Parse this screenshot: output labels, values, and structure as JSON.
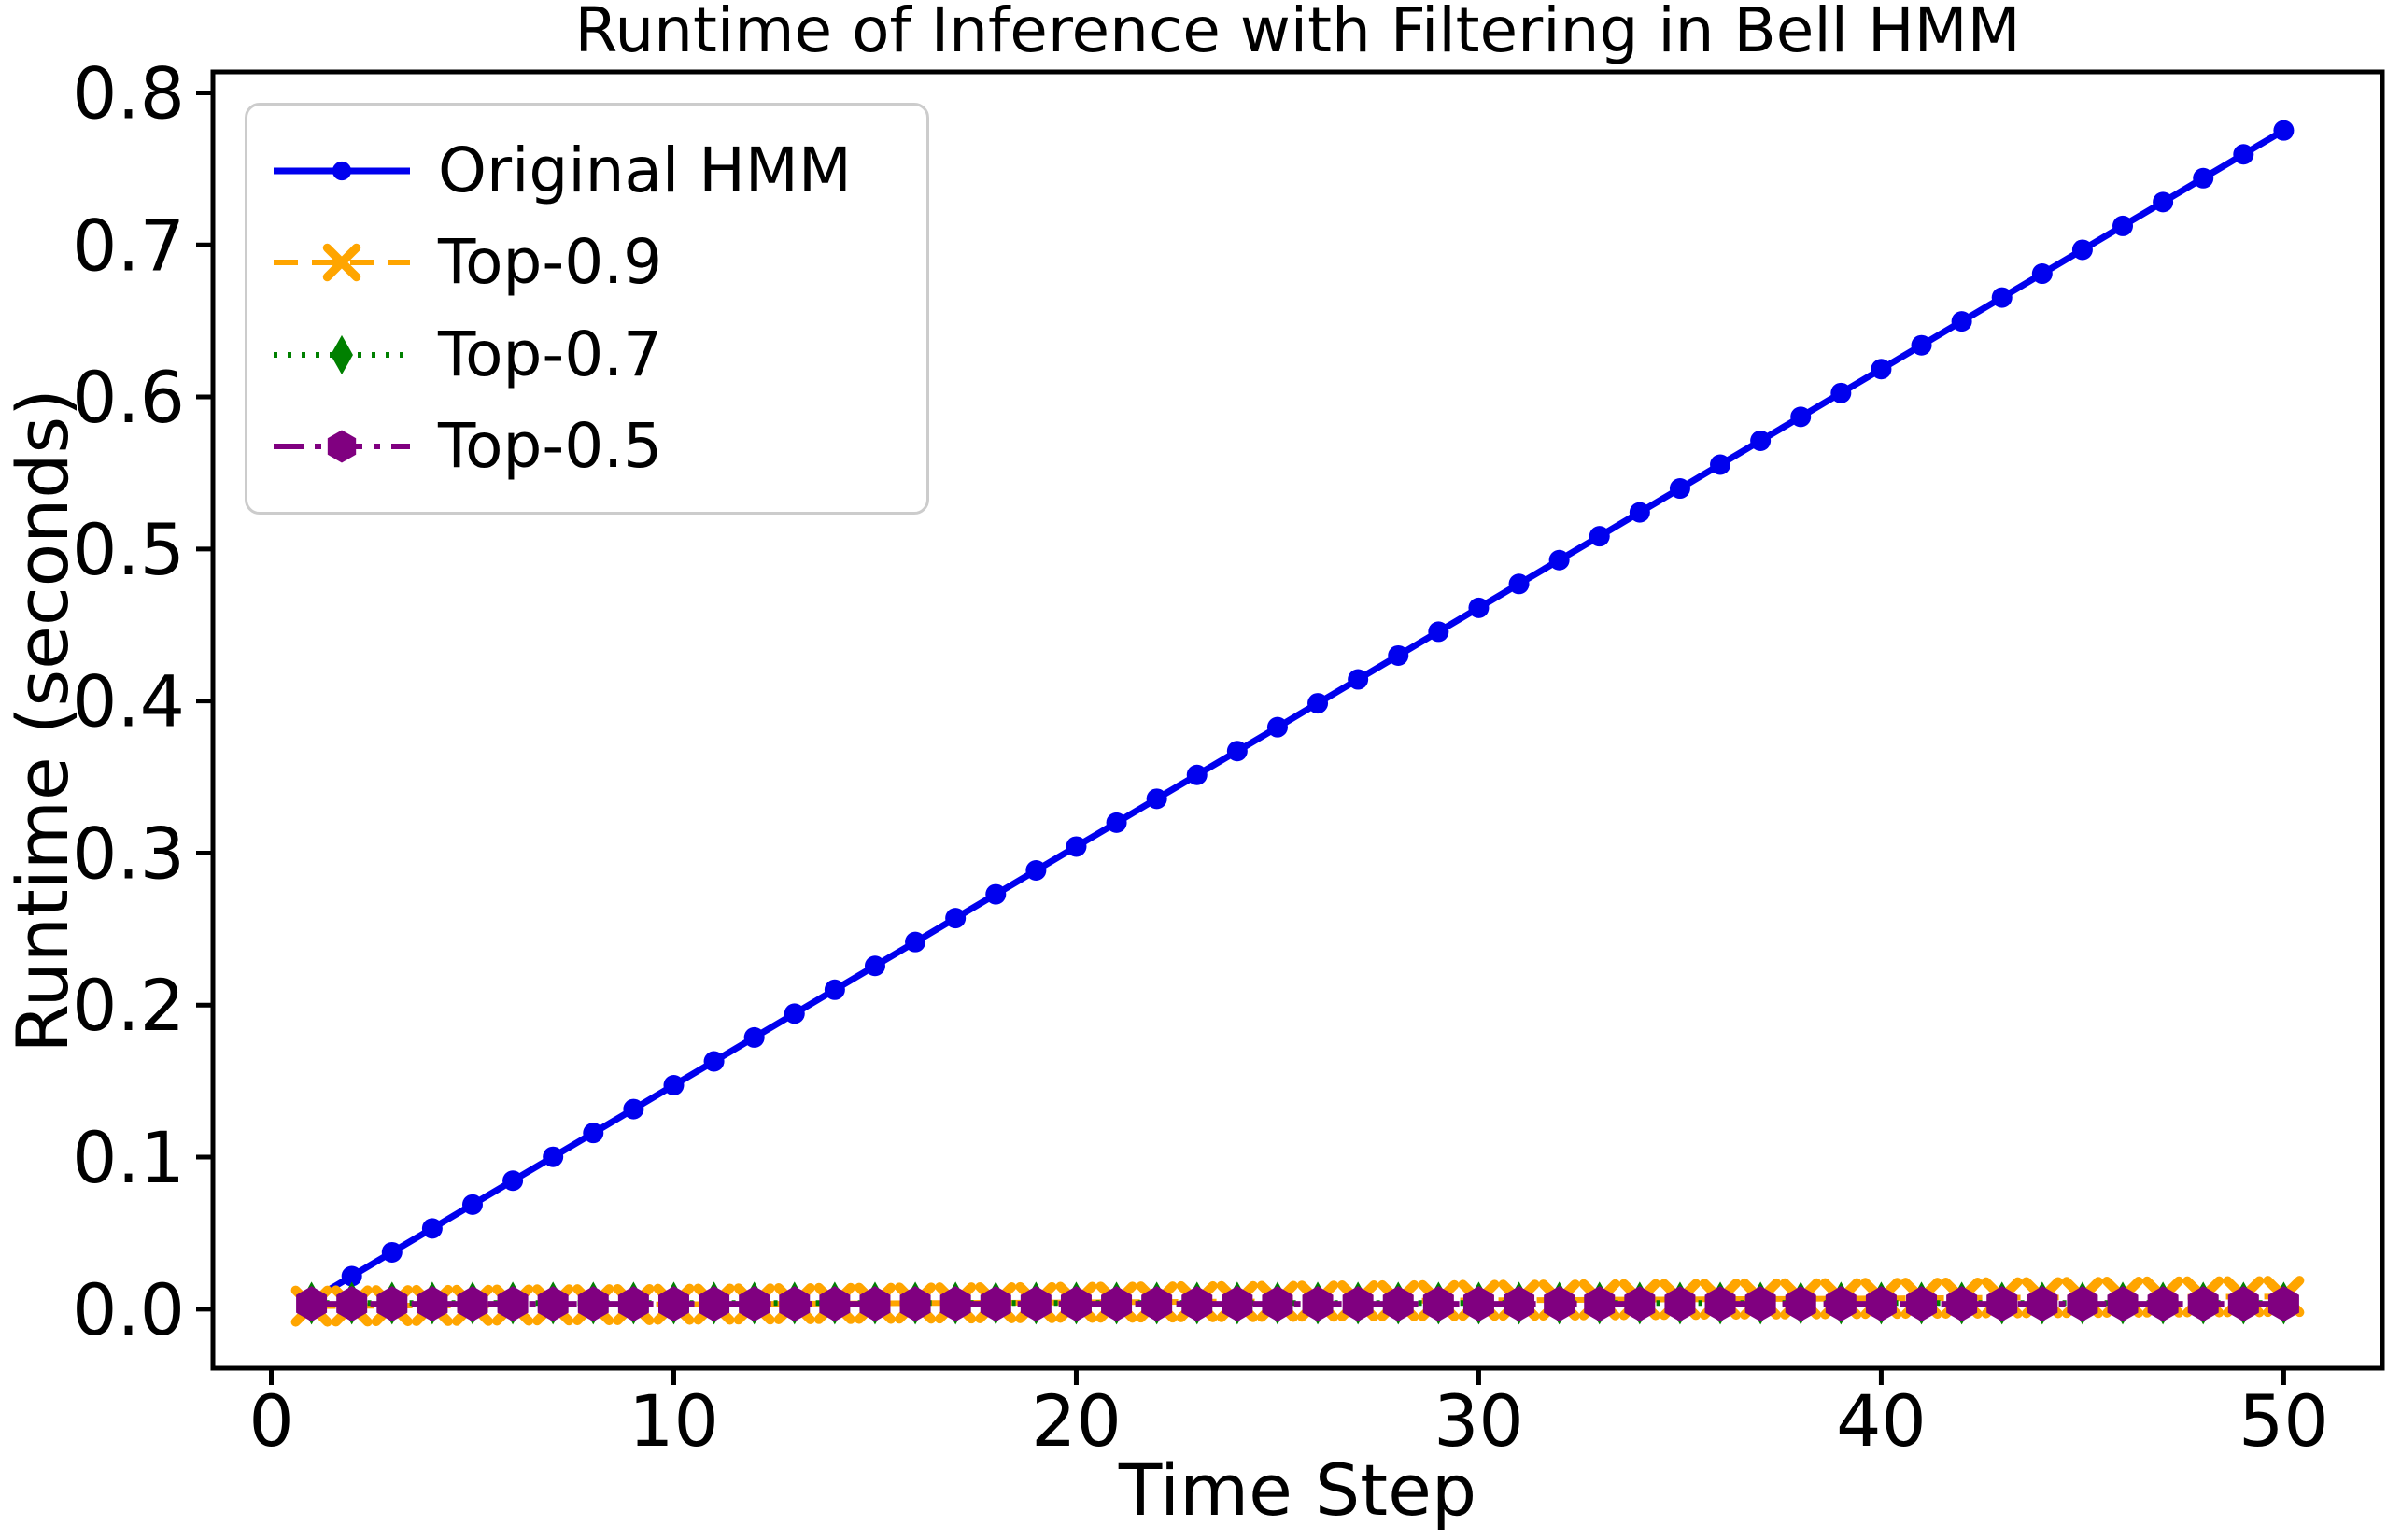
{
  "chart_data": {
    "type": "line",
    "title": "Runtime of Inference with Filtering in Bell HMM",
    "xlabel": "Time Step",
    "ylabel": "Runtime (seconds)",
    "xlim": [
      -1.45,
      52.45
    ],
    "ylim": [
      -0.0388,
      0.8138
    ],
    "xticks": [
      0,
      10,
      20,
      30,
      40,
      50
    ],
    "xtick_labels": [
      "0",
      "10",
      "20",
      "30",
      "40",
      "50"
    ],
    "yticks": [
      0.0,
      0.1,
      0.2,
      0.3,
      0.4,
      0.5,
      0.6,
      0.7,
      0.8
    ],
    "ytick_labels": [
      "0.0",
      "0.1",
      "0.2",
      "0.3",
      "0.4",
      "0.5",
      "0.6",
      "0.7",
      "0.8"
    ],
    "grid": false,
    "legend_position": "upper left",
    "background": "#ffffff",
    "axis_color": "#000000",
    "legend_border_color": "#cccccc",
    "x": [
      1,
      2,
      3,
      4,
      5,
      6,
      7,
      8,
      9,
      10,
      11,
      12,
      13,
      14,
      15,
      16,
      17,
      18,
      19,
      20,
      21,
      22,
      23,
      24,
      25,
      26,
      27,
      28,
      29,
      30,
      31,
      32,
      33,
      34,
      35,
      36,
      37,
      38,
      39,
      40,
      41,
      42,
      43,
      44,
      45,
      46,
      47,
      48,
      49,
      50
    ],
    "series": [
      {
        "name": "Original HMM",
        "color": "#0000ee",
        "linestyle": "solid",
        "marker": "circle",
        "values": [
          0.006,
          0.0217,
          0.0374,
          0.0531,
          0.0688,
          0.0845,
          0.1002,
          0.1159,
          0.1316,
          0.1473,
          0.163,
          0.1787,
          0.1944,
          0.2101,
          0.2258,
          0.2415,
          0.2572,
          0.2729,
          0.2886,
          0.3043,
          0.32,
          0.3357,
          0.3514,
          0.3671,
          0.3828,
          0.3985,
          0.4142,
          0.4299,
          0.4456,
          0.4613,
          0.477,
          0.4927,
          0.5084,
          0.5241,
          0.5398,
          0.5555,
          0.5712,
          0.5869,
          0.6026,
          0.6183,
          0.634,
          0.6497,
          0.6654,
          0.6811,
          0.6968,
          0.7125,
          0.7282,
          0.7439,
          0.7596,
          0.7753
        ]
      },
      {
        "name": "Top-0.9",
        "color": "#ffa500",
        "linestyle": "dashed",
        "marker": "x",
        "values": [
          0.002,
          0.0021,
          0.0023,
          0.0024,
          0.0025,
          0.0027,
          0.0028,
          0.0029,
          0.003,
          0.0032,
          0.0033,
          0.0034,
          0.0036,
          0.0037,
          0.0038,
          0.004,
          0.0041,
          0.0042,
          0.0043,
          0.0045,
          0.0046,
          0.0047,
          0.0049,
          0.005,
          0.0051,
          0.0053,
          0.0054,
          0.0055,
          0.0056,
          0.0058,
          0.0059,
          0.006,
          0.0062,
          0.0063,
          0.0064,
          0.0066,
          0.0067,
          0.0068,
          0.0069,
          0.0071,
          0.0072,
          0.0073,
          0.0075,
          0.0076,
          0.0077,
          0.0079,
          0.008,
          0.0081,
          0.0082,
          0.0084
        ]
      },
      {
        "name": "Top-0.7",
        "color": "#008000",
        "linestyle": "dotted",
        "marker": "thin-diamond",
        "values": [
          0.004,
          0.004,
          0.004,
          0.004,
          0.004,
          0.004,
          0.004,
          0.004,
          0.004,
          0.004,
          0.004,
          0.004,
          0.004,
          0.004,
          0.004,
          0.004,
          0.004,
          0.004,
          0.004,
          0.004,
          0.004,
          0.004,
          0.004,
          0.004,
          0.004,
          0.004,
          0.004,
          0.004,
          0.004,
          0.004,
          0.004,
          0.004,
          0.004,
          0.004,
          0.004,
          0.004,
          0.004,
          0.004,
          0.004,
          0.004,
          0.004,
          0.004,
          0.004,
          0.004,
          0.004,
          0.004,
          0.004,
          0.004,
          0.004,
          0.004
        ]
      },
      {
        "name": "Top-0.5",
        "color": "#800080",
        "linestyle": "dashdot",
        "marker": "hexagon",
        "values": [
          0.0035,
          0.0035,
          0.0035,
          0.0035,
          0.0035,
          0.0035,
          0.0035,
          0.0035,
          0.0035,
          0.0035,
          0.0035,
          0.0035,
          0.0035,
          0.0035,
          0.0035,
          0.0035,
          0.0035,
          0.0035,
          0.0035,
          0.0035,
          0.0035,
          0.0035,
          0.0035,
          0.0035,
          0.0035,
          0.0035,
          0.0035,
          0.0035,
          0.0035,
          0.0035,
          0.0035,
          0.0035,
          0.0035,
          0.0035,
          0.0035,
          0.0035,
          0.0035,
          0.0035,
          0.0035,
          0.0035,
          0.0035,
          0.0035,
          0.0035,
          0.0035,
          0.0035,
          0.0035,
          0.0035,
          0.0035,
          0.0035,
          0.0035
        ]
      }
    ]
  }
}
